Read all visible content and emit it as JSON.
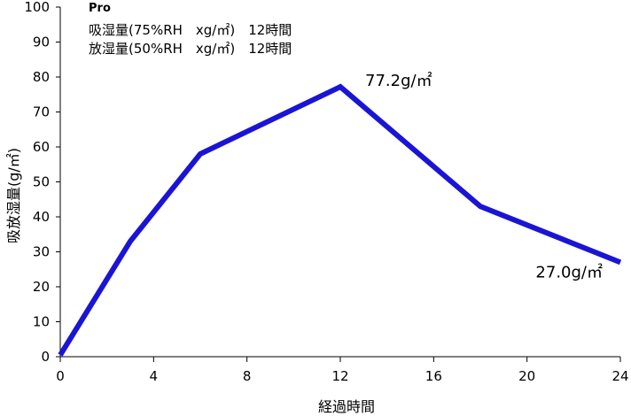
{
  "chart_data": {
    "type": "line",
    "brand": "Pro",
    "legend_lines": [
      "吸湿量(75%RH　xg/㎡)　12時間",
      "放湿量(50%RH　xg/㎡)　12時間"
    ],
    "xlabel": "経過時間",
    "ylabel": "吸放湿量(g/㎡)",
    "xlim": [
      0,
      24
    ],
    "ylim": [
      0,
      100
    ],
    "x_ticks": [
      0,
      4,
      8,
      12,
      16,
      20,
      24
    ],
    "y_ticks": [
      0,
      10,
      20,
      30,
      40,
      50,
      60,
      70,
      80,
      90,
      100
    ],
    "grid": false,
    "series": [
      {
        "color": "#1a14d6",
        "x": [
          0,
          3,
          6,
          12,
          18,
          24
        ],
        "y": [
          0.5,
          33,
          58,
          77.2,
          43,
          27
        ]
      }
    ],
    "annotations": [
      {
        "text": "77.2g/㎡",
        "x": 12,
        "y": 77.2
      },
      {
        "text": "27.0g/㎡",
        "x": 24,
        "y": 27.0
      }
    ]
  }
}
